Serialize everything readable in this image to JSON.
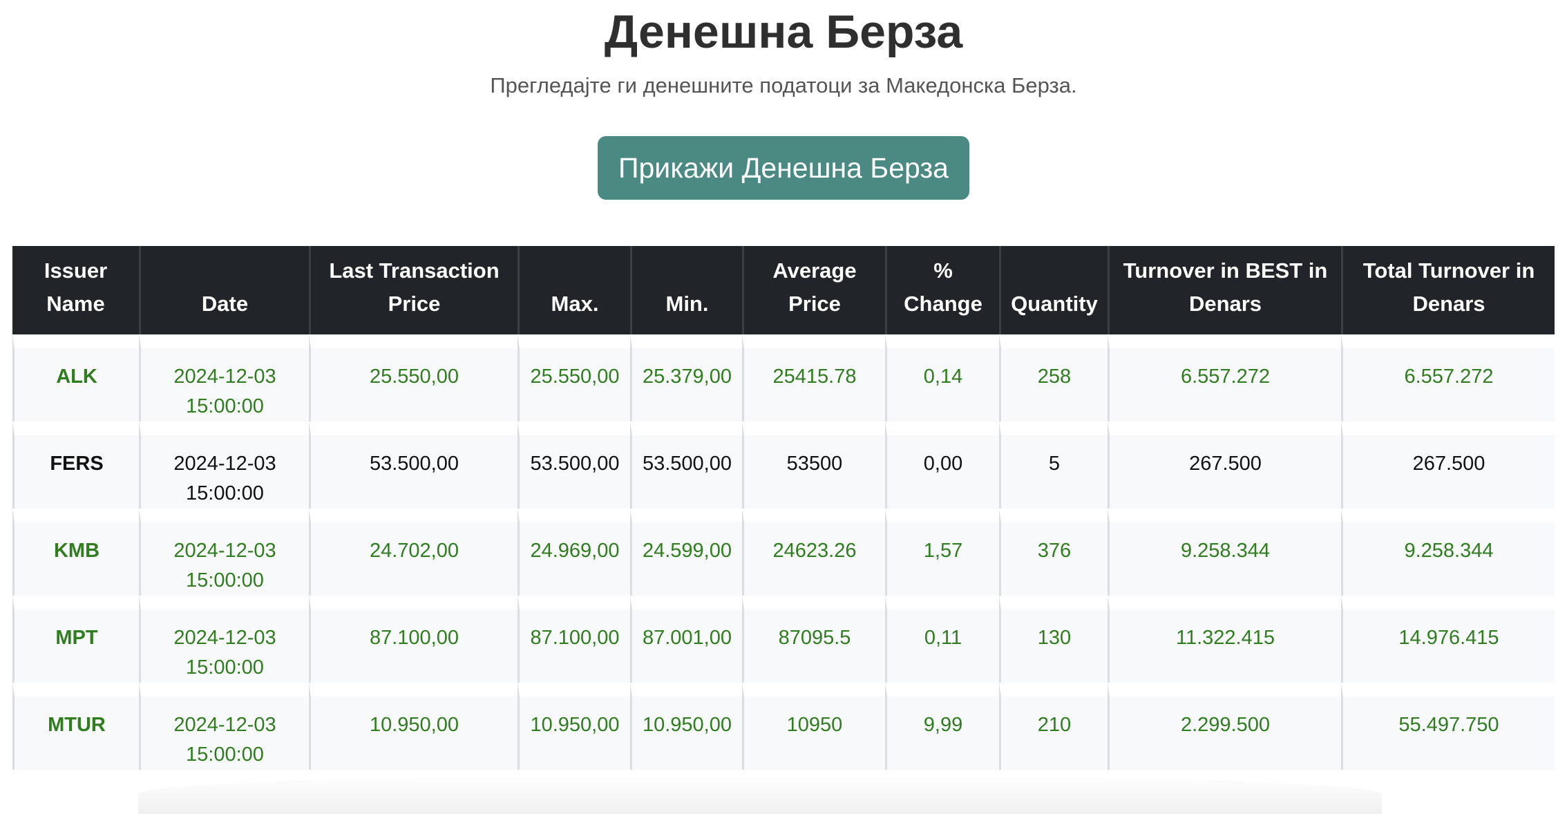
{
  "page": {
    "title": "Денешна Берза",
    "subtitle": "Прегледајте ги денешните податоци за Македонска Берза.",
    "show_button_label": "Прикажи Денешна Берза"
  },
  "colors": {
    "button": "#4a8a83",
    "header_bg": "#212529",
    "positive_text": "#2f7d1e",
    "neutral_text": "#111111"
  },
  "table": {
    "headers": [
      "Issuer Name",
      "Date",
      "Last Transaction Price",
      "Max.",
      "Min.",
      "Average Price",
      "% Change",
      "Quantity",
      "Turnover in BEST in Denars",
      "Total Turnover in Denars"
    ],
    "rows": [
      {
        "status": "up",
        "cells": [
          "ALK",
          "2024-12-03 15:00:00",
          "25.550,00",
          "25.550,00",
          "25.379,00",
          "25415.78",
          "0,14",
          "258",
          "6.557.272",
          "6.557.272"
        ]
      },
      {
        "status": "flat",
        "cells": [
          "FERS",
          "2024-12-03 15:00:00",
          "53.500,00",
          "53.500,00",
          "53.500,00",
          "53500",
          "0,00",
          "5",
          "267.500",
          "267.500"
        ]
      },
      {
        "status": "up",
        "cells": [
          "KMB",
          "2024-12-03 15:00:00",
          "24.702,00",
          "24.969,00",
          "24.599,00",
          "24623.26",
          "1,57",
          "376",
          "9.258.344",
          "9.258.344"
        ]
      },
      {
        "status": "up",
        "cells": [
          "MPT",
          "2024-12-03 15:00:00",
          "87.100,00",
          "87.100,00",
          "87.001,00",
          "87095.5",
          "0,11",
          "130",
          "11.322.415",
          "14.976.415"
        ]
      },
      {
        "status": "up",
        "cells": [
          "MTUR",
          "2024-12-03 15:00:00",
          "10.950,00",
          "10.950,00",
          "10.950,00",
          "10950",
          "9,99",
          "210",
          "2.299.500",
          "55.497.750"
        ]
      }
    ]
  }
}
